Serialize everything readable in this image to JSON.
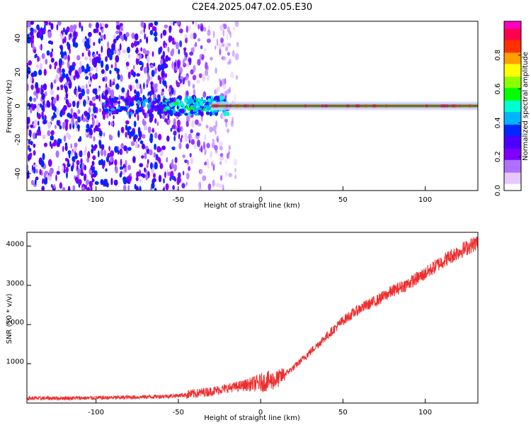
{
  "title": "C2E4.2025.047.02.05.E30",
  "chart_data": [
    {
      "type": "heatmap",
      "xlabel": "Height of straight line (km)",
      "ylabel": "Frequency (Hz)",
      "xlim": [
        -142,
        132
      ],
      "ylim": [
        -50,
        50
      ],
      "xticks": [
        "-100",
        "-50",
        "0",
        "50",
        "100"
      ],
      "yticks": [
        "-40",
        "-20",
        "0",
        "20",
        "40"
      ],
      "colorbar": {
        "label": "Normalized spectral amplitude",
        "range": [
          0,
          1
        ],
        "ticks": [
          "0.0",
          "0.2",
          "0.4",
          "0.6",
          "0.8"
        ],
        "colormap": [
          "#ffffff",
          "#e6c8ff",
          "#b070ff",
          "#7f00ff",
          "#4b00ff",
          "#0028ff",
          "#00b4ff",
          "#00ffd0",
          "#00ff00",
          "#8cff00",
          "#ffff00",
          "#ffa000",
          "#ff3000",
          "#ff0050",
          "#ff00c0"
        ]
      },
      "features": {
        "noise_region_x": [
          -142,
          -20
        ],
        "center_line_frequency": 0,
        "center_line_x": [
          -30,
          132
        ]
      }
    },
    {
      "type": "line",
      "xlabel": "Height of straight line (km)",
      "ylabel": "SNR (10 * v/v)",
      "xlim": [
        -142,
        132
      ],
      "ylim": [
        0,
        4350
      ],
      "xticks": [
        "-100",
        "-50",
        "0",
        "50",
        "100"
      ],
      "yticks": [
        "1000",
        "2000",
        "3000",
        "4000"
      ],
      "series": [
        {
          "color": "#ee2e2e",
          "x": [
            -142,
            -120,
            -100,
            -80,
            -60,
            -50,
            -40,
            -30,
            -20,
            -10,
            0,
            10,
            20,
            30,
            40,
            50,
            60,
            70,
            80,
            90,
            100,
            110,
            120,
            132
          ],
          "values": [
            120,
            125,
            130,
            145,
            170,
            190,
            240,
            300,
            380,
            450,
            520,
            600,
            900,
            1300,
            1700,
            2100,
            2400,
            2600,
            2850,
            3050,
            3300,
            3600,
            3850,
            4100
          ]
        }
      ]
    }
  ]
}
